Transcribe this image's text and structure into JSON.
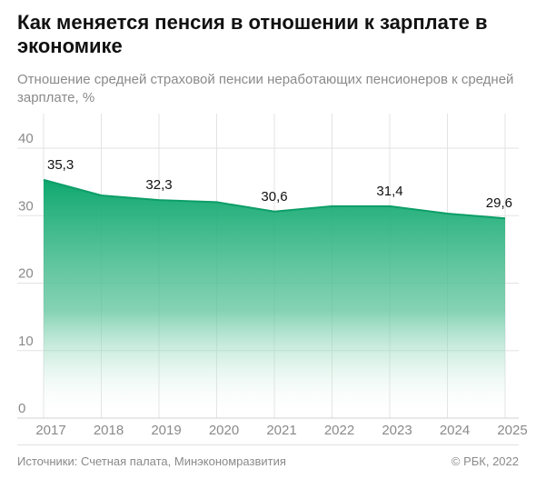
{
  "title": "Как меняется пенсия в отношении к зарплате в экономике",
  "subtitle": "Отношение средней страховой пенсии неработающих пенсионеров к средней зарплате, %",
  "footer": {
    "source": "Источники: Счетная палата, Минэкономразвития",
    "credit": "© РБК, 2022"
  },
  "chart_data": {
    "type": "area",
    "title": "Как меняется пенсия в отношении к зарплате в экономике",
    "subtitle": "Отношение средней страховой пенсии неработающих пенсионеров к средней зарплате, %",
    "x": [
      "2017",
      "2018",
      "2019",
      "2020",
      "2021",
      "2022",
      "2023",
      "2024",
      "2025"
    ],
    "series": [
      {
        "values": [
          35.3,
          33.0,
          32.3,
          32.0,
          30.6,
          31.4,
          31.4,
          30.3,
          29.6
        ]
      }
    ],
    "data_labels": [
      {
        "index": 0,
        "text": "35,3"
      },
      {
        "index": 2,
        "text": "32,3"
      },
      {
        "index": 4,
        "text": "30,6"
      },
      {
        "index": 6,
        "text": "31,4"
      },
      {
        "index": 8,
        "text": "29,6"
      }
    ],
    "yticks": [
      0,
      10,
      20,
      30,
      40
    ],
    "ylim": [
      0,
      40
    ],
    "grid": true,
    "colors": {
      "fill_top": "#0fa86f",
      "line": "#0d9e68"
    }
  }
}
